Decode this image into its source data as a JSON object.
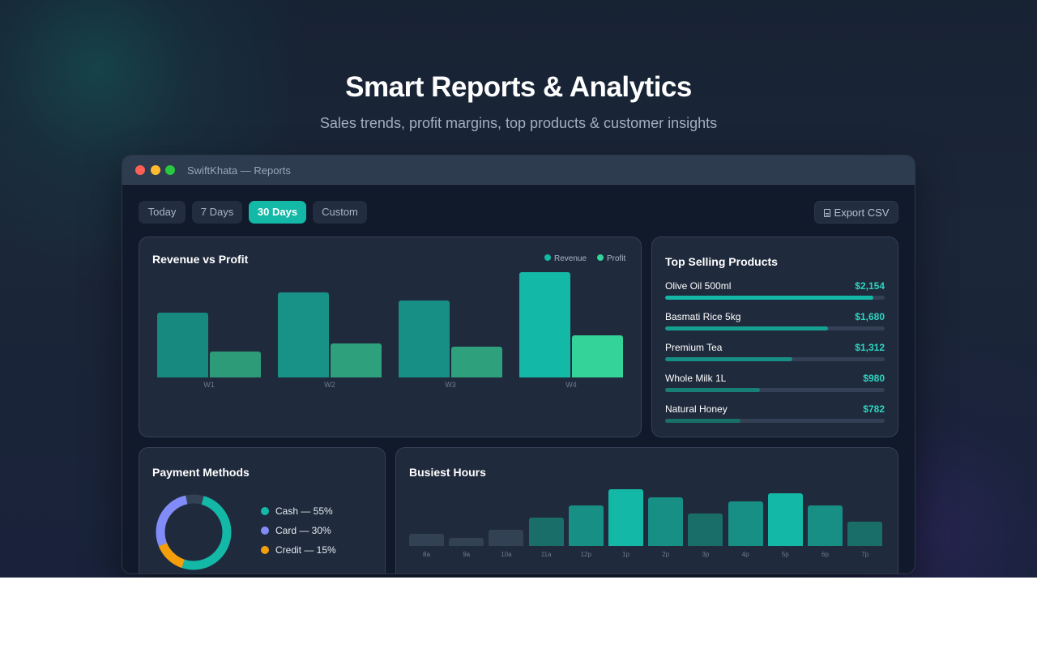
{
  "hero": {
    "title": "Smart Reports & Analytics",
    "subtitle": "Sales trends, profit margins, top products & customer insights"
  },
  "window": {
    "title": "SwiftKhata — Reports"
  },
  "filters": {
    "options": [
      "Today",
      "7 Days",
      "30 Days",
      "Custom"
    ],
    "selected": "30 Days",
    "export_label": "Export CSV"
  },
  "revenue_card": {
    "title": "Revenue vs Profit",
    "legend": [
      "Revenue",
      "Profit"
    ]
  },
  "top_products": {
    "title": "Top Selling Products",
    "items": [
      {
        "name": "Olive Oil 500ml",
        "value": "$2,154",
        "amount": 2154
      },
      {
        "name": "Basmati Rice 5kg",
        "value": "$1,680",
        "amount": 1680
      },
      {
        "name": "Premium Tea",
        "value": "$1,312",
        "amount": 1312
      },
      {
        "name": "Whole Milk 1L",
        "value": "$980",
        "amount": 980
      },
      {
        "name": "Natural Honey",
        "value": "$782",
        "amount": 782
      }
    ]
  },
  "payment_methods": {
    "title": "Payment Methods",
    "items": [
      {
        "label": "Cash — 55%",
        "share": 55
      },
      {
        "label": "Card — 30%",
        "share": 30
      },
      {
        "label": "Credit — 15%",
        "share": 15
      }
    ]
  },
  "busiest_hours": {
    "title": "Busiest Hours"
  },
  "colors": {
    "accent": "#14b8a6",
    "profit": "#34d399",
    "card": "#818cf8",
    "credit": "#f59e0b",
    "background": "#111a2b"
  },
  "chart_data": [
    {
      "type": "bar",
      "categories": [
        "W1",
        "W2",
        "W3",
        "W4"
      ],
      "series": [
        {
          "name": "Revenue",
          "values": [
            80,
            105,
            95,
            130
          ]
        },
        {
          "name": "Profit",
          "values": [
            32,
            42,
            38,
            52
          ]
        }
      ],
      "title": "Revenue vs Profit",
      "ylim": [
        0,
        130
      ],
      "grid": false,
      "legend": "top-right"
    },
    {
      "type": "bar",
      "categories": [
        "8a",
        "9a",
        "10a",
        "11a",
        "12p",
        "1p",
        "2p",
        "3p",
        "4p",
        "5p",
        "6p",
        "7p"
      ],
      "values": [
        15,
        10,
        20,
        35,
        50,
        70,
        60,
        40,
        55,
        65,
        50,
        30
      ],
      "title": "Busiest Hours",
      "ylim": [
        0,
        70
      ],
      "grid": false
    },
    {
      "type": "pie",
      "categories": [
        "Cash",
        "Card",
        "Credit"
      ],
      "values": [
        55,
        30,
        15
      ],
      "title": "Payment Methods",
      "legend": "right"
    }
  ]
}
